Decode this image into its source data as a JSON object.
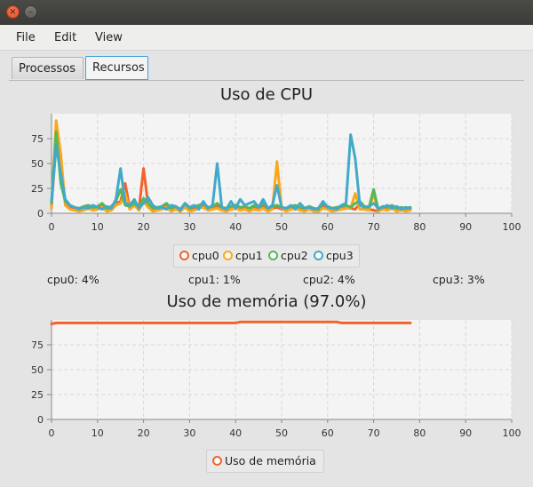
{
  "window": {
    "close_symbol": "×",
    "minimize_symbol": "–"
  },
  "menubar": {
    "items": [
      {
        "label": "File"
      },
      {
        "label": "Edit"
      },
      {
        "label": "View"
      }
    ]
  },
  "tabs": [
    {
      "label": "Processos",
      "selected": false
    },
    {
      "label": "Recursos",
      "selected": true
    }
  ],
  "colors": {
    "cpu0": "#f3622d",
    "cpu1": "#fba71b",
    "cpu2": "#57b757",
    "cpu3": "#41a9c9",
    "memory": "#f3622d"
  },
  "cpu_summary": [
    {
      "text": "cpu0: 4%"
    },
    {
      "text": "cpu1: 1%"
    },
    {
      "text": "cpu2: 4%"
    },
    {
      "text": "cpu3: 3%"
    }
  ],
  "chart_data": [
    {
      "type": "line",
      "title": "Uso de CPU",
      "xlim": [
        0,
        100
      ],
      "ylim": [
        0,
        100
      ],
      "x_ticks": [
        0,
        10,
        20,
        30,
        40,
        50,
        60,
        70,
        80,
        90,
        100
      ],
      "y_ticks": [
        0,
        25,
        50,
        75
      ],
      "grid": true,
      "legend": "bottom",
      "x": [
        0,
        1,
        2,
        3,
        4,
        5,
        6,
        7,
        8,
        9,
        10,
        11,
        12,
        13,
        14,
        15,
        16,
        17,
        18,
        19,
        20,
        21,
        22,
        23,
        24,
        25,
        26,
        27,
        28,
        29,
        30,
        31,
        32,
        33,
        34,
        35,
        36,
        37,
        38,
        39,
        40,
        41,
        42,
        43,
        44,
        45,
        46,
        47,
        48,
        49,
        50,
        51,
        52,
        53,
        54,
        55,
        56,
        57,
        58,
        59,
        60,
        61,
        62,
        63,
        64,
        65,
        66,
        67,
        68,
        69,
        70,
        71,
        72,
        73,
        74,
        75,
        76,
        77,
        78
      ],
      "series": [
        {
          "name": "cpu0",
          "values": [
            8,
            70,
            45,
            10,
            6,
            4,
            3,
            5,
            6,
            4,
            5,
            8,
            3,
            5,
            10,
            12,
            30,
            5,
            13,
            4,
            45,
            8,
            3,
            4,
            5,
            8,
            3,
            5,
            2,
            9,
            3,
            5,
            6,
            8,
            4,
            5,
            8,
            4,
            3,
            5,
            6,
            4,
            5,
            3,
            6,
            4,
            8,
            3,
            5,
            6,
            4,
            3,
            5,
            6,
            4,
            3,
            5,
            3,
            2,
            8,
            5,
            3,
            4,
            5,
            6,
            5,
            4,
            10,
            5,
            4,
            3,
            2,
            5,
            4,
            6,
            3,
            4,
            3,
            4
          ]
        },
        {
          "name": "cpu1",
          "values": [
            5,
            93,
            60,
            8,
            4,
            3,
            2,
            3,
            5,
            3,
            4,
            6,
            2,
            3,
            8,
            10,
            20,
            4,
            8,
            3,
            12,
            6,
            2,
            3,
            4,
            6,
            2,
            4,
            2,
            6,
            2,
            3,
            5,
            6,
            3,
            4,
            5,
            3,
            2,
            4,
            5,
            3,
            4,
            2,
            4,
            3,
            5,
            2,
            4,
            52,
            5,
            2,
            4,
            5,
            3,
            2,
            4,
            2,
            2,
            5,
            4,
            2,
            3,
            4,
            5,
            5,
            20,
            4,
            4,
            3,
            20,
            2,
            4,
            3,
            5,
            2,
            3,
            2,
            3
          ]
        },
        {
          "name": "cpu2",
          "values": [
            10,
            82,
            30,
            12,
            8,
            6,
            5,
            7,
            8,
            6,
            7,
            10,
            5,
            7,
            12,
            24,
            8,
            7,
            10,
            6,
            15,
            10,
            5,
            6,
            7,
            10,
            5,
            7,
            4,
            10,
            5,
            7,
            8,
            10,
            6,
            7,
            10,
            6,
            5,
            7,
            8,
            6,
            7,
            5,
            8,
            6,
            10,
            5,
            7,
            8,
            6,
            5,
            7,
            8,
            6,
            5,
            7,
            5,
            4,
            10,
            7,
            5,
            6,
            7,
            8,
            6,
            10,
            12,
            7,
            6,
            24,
            4,
            7,
            6,
            8,
            5,
            6,
            5,
            6
          ]
        },
        {
          "name": "cpu3",
          "values": [
            12,
            68,
            40,
            14,
            8,
            6,
            4,
            6,
            5,
            8,
            6,
            4,
            7,
            5,
            14,
            45,
            10,
            8,
            14,
            5,
            10,
            16,
            8,
            5,
            6,
            4,
            8,
            7,
            3,
            10,
            6,
            8,
            4,
            12,
            5,
            8,
            50,
            6,
            4,
            12,
            5,
            14,
            8,
            10,
            12,
            6,
            14,
            5,
            8,
            28,
            6,
            5,
            8,
            4,
            10,
            5,
            6,
            4,
            5,
            12,
            6,
            5,
            4,
            8,
            10,
            79,
            55,
            8,
            6,
            7,
            10,
            5,
            6,
            8,
            5,
            7,
            4,
            6,
            5
          ]
        }
      ]
    },
    {
      "type": "line",
      "title": "Uso de memória (97.0%)",
      "xlim": [
        0,
        100
      ],
      "ylim": [
        0,
        100
      ],
      "x_ticks": [
        0,
        10,
        20,
        30,
        40,
        50,
        60,
        70,
        80,
        90,
        100
      ],
      "y_ticks": [
        0,
        25,
        50,
        75
      ],
      "grid": true,
      "legend": "bottom",
      "x": [
        0,
        1,
        40,
        41,
        62,
        63,
        78
      ],
      "series": [
        {
          "name": "Uso de memória",
          "values": [
            96,
            97,
            97,
            98,
            98,
            97,
            97
          ]
        }
      ]
    }
  ]
}
